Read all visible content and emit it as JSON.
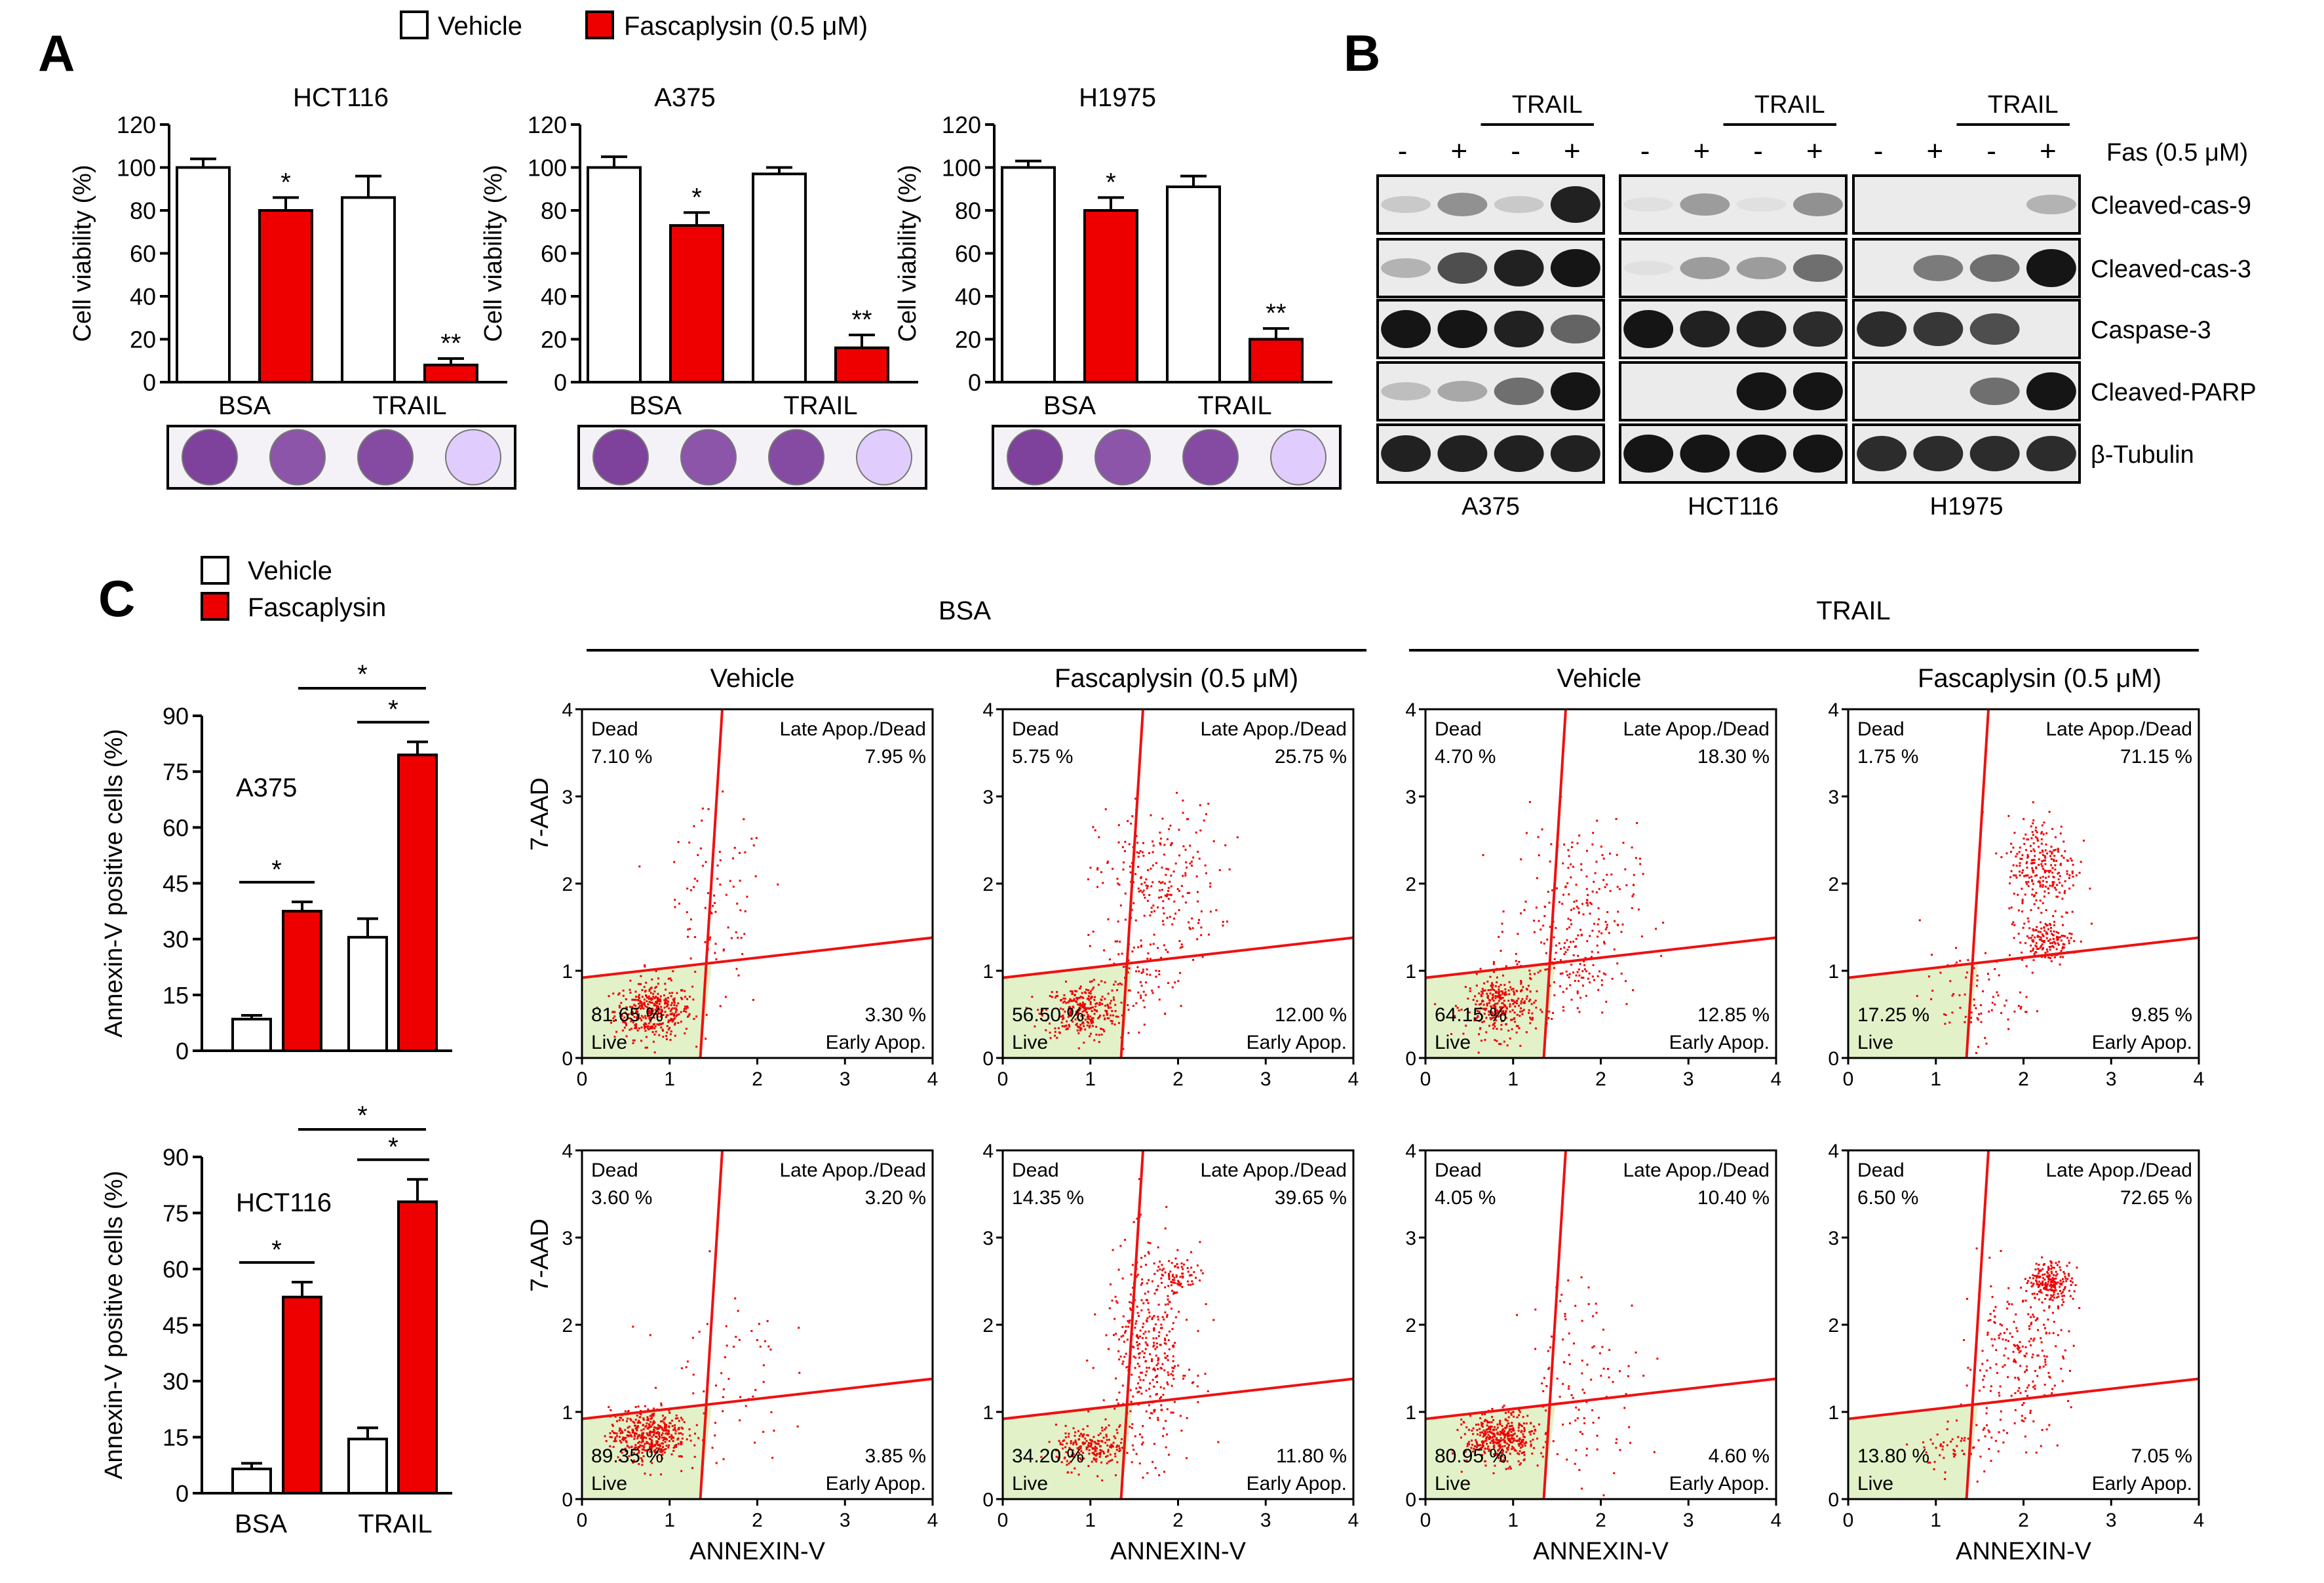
{
  "colors": {
    "fasc": "#ee0000",
    "vehicle": "#ffffff",
    "live_fill": "#e2f1c8",
    "gate": "#ee1111",
    "dot": "#ee0000"
  },
  "panels": {
    "a": "A",
    "b": "B",
    "c": "C"
  },
  "legend_top": {
    "vehicle": "Vehicle",
    "fasc": "Fascaplysin (0.5 μM)"
  },
  "legend_c": {
    "vehicle": "Vehicle",
    "fasc": "Fascaplysin"
  },
  "panelA": {
    "ylabel": "Cell viability (%)",
    "ticks": [
      "0",
      "20",
      "40",
      "60",
      "80",
      "100",
      "120"
    ],
    "categories": [
      "BSA",
      "TRAIL"
    ],
    "charts": [
      {
        "title": "HCT116",
        "values": [
          100,
          80,
          86,
          8
        ],
        "errors": [
          4,
          6,
          10,
          3
        ],
        "stars": [
          "",
          "*",
          "",
          "**"
        ]
      },
      {
        "title": "A375",
        "values": [
          100,
          73,
          97,
          16
        ],
        "errors": [
          5,
          6,
          3,
          6
        ],
        "stars": [
          "",
          "*",
          "",
          "**"
        ]
      },
      {
        "title": "H1975",
        "values": [
          100,
          80,
          91,
          20
        ],
        "errors": [
          3,
          6,
          5,
          5
        ],
        "stars": [
          "",
          "*",
          "",
          "**"
        ]
      }
    ]
  },
  "panelB": {
    "trail": "TRAIL",
    "signs": [
      "-",
      "+",
      "-",
      "+"
    ],
    "fas_label": "Fas (0.5 μM)",
    "rows": [
      "Cleaved-cas-9",
      "Cleaved-cas-3",
      "Caspase-3",
      "Cleaved-PARP",
      "β-Tubulin"
    ],
    "cells": [
      "A375",
      "HCT116",
      "H1975"
    ],
    "intensities": [
      [
        [
          0.15,
          0.4,
          0.15,
          0.9
        ],
        [
          0.25,
          0.7,
          0.9,
          0.95
        ],
        [
          0.95,
          0.95,
          0.9,
          0.6
        ],
        [
          0.2,
          0.3,
          0.55,
          0.95
        ],
        [
          0.9,
          0.9,
          0.9,
          0.9
        ]
      ],
      [
        [
          0.05,
          0.35,
          0.05,
          0.4
        ],
        [
          0.05,
          0.35,
          0.35,
          0.55
        ],
        [
          0.95,
          0.9,
          0.9,
          0.85
        ],
        [
          0.0,
          0.0,
          0.95,
          0.95
        ],
        [
          0.95,
          0.95,
          0.95,
          0.95
        ]
      ],
      [
        [
          0.0,
          0.0,
          0.0,
          0.25
        ],
        [
          0.0,
          0.5,
          0.55,
          0.95
        ],
        [
          0.85,
          0.8,
          0.7,
          0.0
        ],
        [
          0.0,
          0.0,
          0.55,
          0.95
        ],
        [
          0.85,
          0.85,
          0.85,
          0.85
        ]
      ]
    ]
  },
  "panelC": {
    "ylabel": "Annexin-V positive cells (%)",
    "ticks": [
      "0",
      "15",
      "30",
      "45",
      "60",
      "75",
      "90"
    ],
    "categories": [
      "BSA",
      "TRAIL"
    ],
    "charts": [
      {
        "cell": "A375",
        "values": [
          8.5,
          37.5,
          30.5,
          79.5
        ],
        "errors": [
          1,
          2.5,
          5,
          3.5
        ],
        "stars": [
          "*",
          "*",
          "*"
        ]
      },
      {
        "cell": "HCT116",
        "values": [
          6.5,
          52.5,
          14.5,
          78
        ],
        "errors": [
          1.5,
          4,
          3,
          6
        ],
        "stars": [
          "*",
          "*",
          "*"
        ]
      }
    ],
    "group_bsa": "BSA",
    "group_trail": "TRAIL",
    "col_heads": [
      "Vehicle",
      "Fascaplysin (0.5 μM)",
      "Vehicle",
      "Fascaplysin (0.5 μM)"
    ],
    "flow_xlabel": "ANNEXIN-V",
    "flow_ylabel": "7-AAD",
    "flow_ticks": [
      "0",
      "1",
      "2",
      "3",
      "4"
    ],
    "q_dead": "Dead",
    "q_late": "Late Apop./Dead",
    "q_live": "Live",
    "q_early": "Early Apop.",
    "plots": [
      [
        {
          "dead": "7.10 %",
          "late": "7.95 %",
          "live": "81.65 %",
          "early": "3.30 %"
        },
        {
          "dead": "5.75 %",
          "late": "25.75 %",
          "live": "56.50 %",
          "early": "12.00 %"
        },
        {
          "dead": "4.70 %",
          "late": "18.30 %",
          "live": "64.15 %",
          "early": "12.85 %"
        },
        {
          "dead": "1.75 %",
          "late": "71.15 %",
          "live": "17.25 %",
          "early": "9.85 %"
        }
      ],
      [
        {
          "dead": "3.60 %",
          "late": "3.20 %",
          "live": "89.35 %",
          "early": "3.85 %"
        },
        {
          "dead": "14.35 %",
          "late": "39.65 %",
          "live": "34.20 %",
          "early": "11.80 %"
        },
        {
          "dead": "4.05 %",
          "late": "10.40 %",
          "live": "80.95 %",
          "early": "4.60 %"
        },
        {
          "dead": "6.50 %",
          "late": "72.65 %",
          "live": "13.80 %",
          "early": "7.05 %"
        }
      ]
    ]
  }
}
